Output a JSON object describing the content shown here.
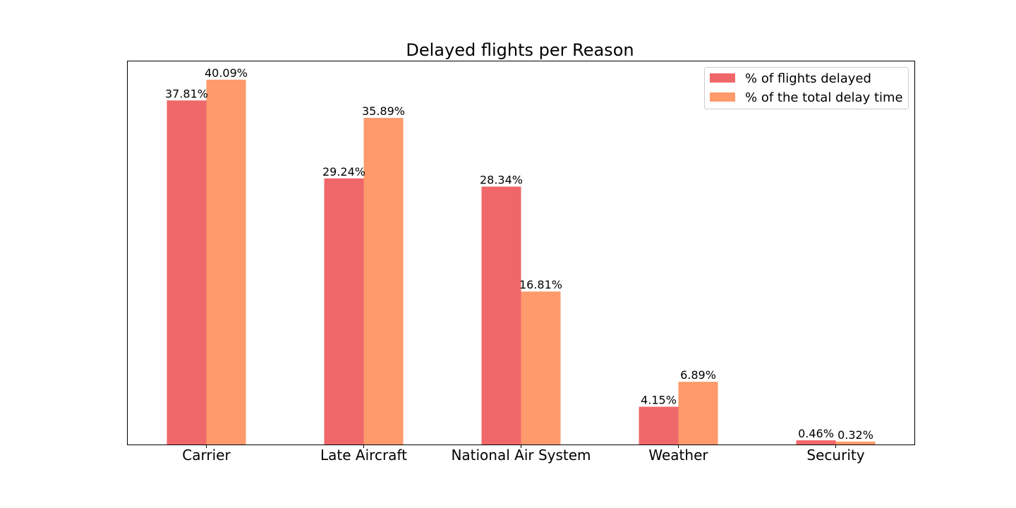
{
  "chart_data": {
    "type": "bar",
    "title": "Delayed flights per Reason",
    "xlabel": "",
    "ylabel": "",
    "categories": [
      "Carrier",
      "Late Aircraft",
      "National Air System",
      "Weather",
      "Security"
    ],
    "series": [
      {
        "name": "% of flights delayed",
        "color": "#f0676a",
        "values": [
          37.81,
          29.24,
          28.34,
          4.15,
          0.46
        ],
        "labels": [
          "37.81%",
          "29.24%",
          "28.34%",
          "4.15%",
          "0.46%"
        ]
      },
      {
        "name": "% of the total delay time",
        "color": "#fe9a6b",
        "values": [
          40.09,
          35.89,
          16.81,
          6.89,
          0.32
        ],
        "labels": [
          "40.09%",
          "35.89%",
          "16.81%",
          "6.89%",
          "0.32%"
        ]
      }
    ],
    "ylim": [
      0,
      42.1
    ],
    "y_axis_visible": false,
    "grid": false,
    "legend": "top-right"
  }
}
